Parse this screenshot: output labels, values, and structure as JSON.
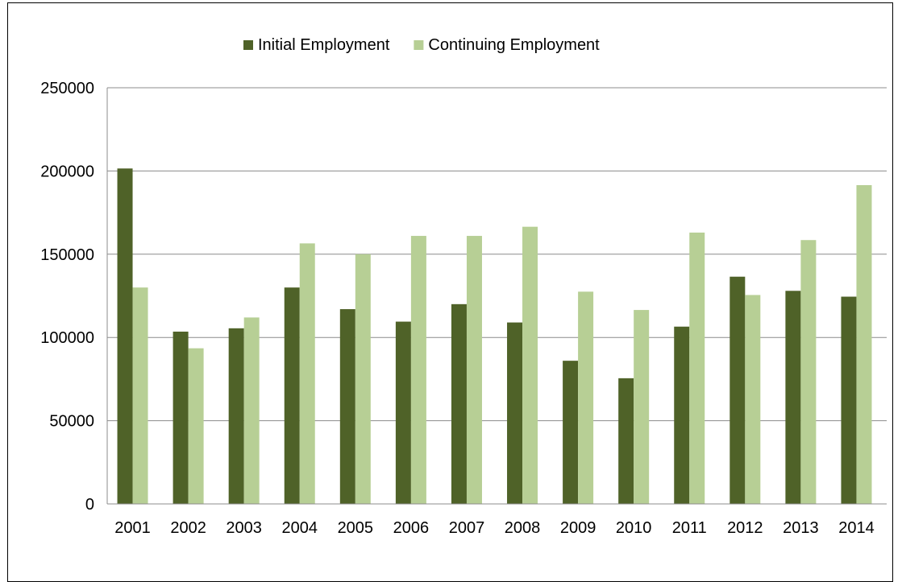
{
  "chart_data": {
    "type": "bar",
    "title": "",
    "xlabel": "",
    "ylabel": "",
    "categories": [
      "2001",
      "2002",
      "2003",
      "2004",
      "2005",
      "2006",
      "2007",
      "2008",
      "2009",
      "2010",
      "2011",
      "2012",
      "2013",
      "2014"
    ],
    "series": [
      {
        "name": "Initial Employment",
        "color": "#4f6228",
        "values": [
          201500,
          103500,
          105500,
          130000,
          117000,
          109500,
          120000,
          109000,
          86000,
          75500,
          106500,
          136500,
          128000,
          124500
        ]
      },
      {
        "name": "Continuing Employment",
        "color": "#b7cf95",
        "values": [
          130000,
          93500,
          112000,
          156500,
          150000,
          161000,
          161000,
          166500,
          127500,
          116500,
          163000,
          125500,
          158500,
          191500
        ]
      }
    ],
    "ylim": [
      0,
      250000
    ],
    "yticks": [
      0,
      50000,
      100000,
      150000,
      200000,
      250000
    ],
    "grid": true,
    "legend_position": "top-center"
  }
}
